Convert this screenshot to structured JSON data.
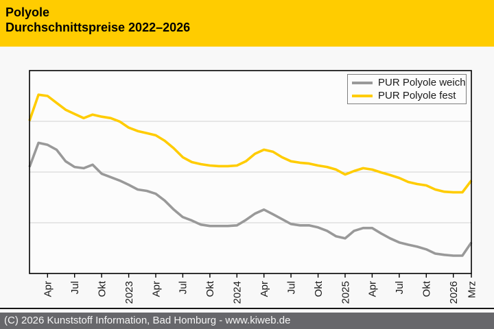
{
  "header": {
    "title_line1": "Polyole",
    "title_line2": "Durchschnittspreise 2022–2026",
    "bg_color": "#FFCC00",
    "text_color": "#000000"
  },
  "footer": {
    "text": "(C) 2026 Kunststoff Information, Bad Homburg - www.kiweb.de",
    "bg_color": "#67676b",
    "text_color": "#f5f5f5"
  },
  "legend": {
    "position": "top-right",
    "items": [
      {
        "label": "PUR Polyole weich",
        "color": "#999999"
      },
      {
        "label": "PUR Polyole fest",
        "color": "#FFCC00"
      }
    ]
  },
  "chart_data": {
    "type": "line",
    "title": "Polyole Durchschnittspreise 2022–2026",
    "x_unit": "month",
    "x_start": "2022-02",
    "x_end": "2026-03",
    "n_months": 50,
    "x_tick_labels": [
      "Apr",
      "Jul",
      "Okt",
      "2023",
      "Apr",
      "Jul",
      "Okt",
      "2024",
      "Apr",
      "Jul",
      "Okt",
      "2025",
      "Apr",
      "Jul",
      "Okt",
      "2026",
      "Mrz"
    ],
    "x_tick_month_index": [
      2,
      5,
      8,
      11,
      14,
      17,
      20,
      23,
      26,
      29,
      32,
      35,
      38,
      41,
      44,
      47,
      49
    ],
    "y_axis_unlabeled": true,
    "ylabel": "",
    "xlabel": "",
    "ylim": [
      0,
      100
    ],
    "grid": "horizontal-only",
    "grid_values": [
      25,
      50,
      75
    ],
    "legend_position": "top-right",
    "series": [
      {
        "name": "PUR Polyole weich",
        "color": "#999999",
        "values": [
          52.5,
          64.4,
          63.4,
          61.0,
          55.3,
          52.5,
          51.9,
          53.6,
          49.2,
          47.5,
          45.8,
          43.7,
          41.4,
          40.7,
          39.3,
          35.9,
          31.5,
          27.8,
          26.1,
          24.1,
          23.4,
          23.4,
          23.4,
          23.7,
          26.4,
          29.5,
          31.5,
          29.2,
          26.8,
          24.4,
          23.7,
          23.7,
          22.7,
          21.0,
          18.3,
          17.3,
          21.0,
          22.4,
          22.4,
          19.7,
          17.3,
          15.3,
          14.2,
          13.2,
          11.9,
          9.8,
          9.2,
          8.8,
          8.8,
          15.3
        ]
      },
      {
        "name": "PUR Polyole fest",
        "color": "#FFCC00",
        "values": [
          75.3,
          88.1,
          87.5,
          84.1,
          80.7,
          78.6,
          76.6,
          78.3,
          77.3,
          76.6,
          74.9,
          71.9,
          70.2,
          69.2,
          68.1,
          65.4,
          61.7,
          57.3,
          54.9,
          53.9,
          53.2,
          52.9,
          52.9,
          53.2,
          55.3,
          59.0,
          61.0,
          60.0,
          57.3,
          55.3,
          54.6,
          54.2,
          53.2,
          52.5,
          51.2,
          48.8,
          50.5,
          51.9,
          51.2,
          49.8,
          48.5,
          47.1,
          45.1,
          44.1,
          43.4,
          41.4,
          40.3,
          40.0,
          40.0,
          45.8
        ]
      }
    ]
  }
}
